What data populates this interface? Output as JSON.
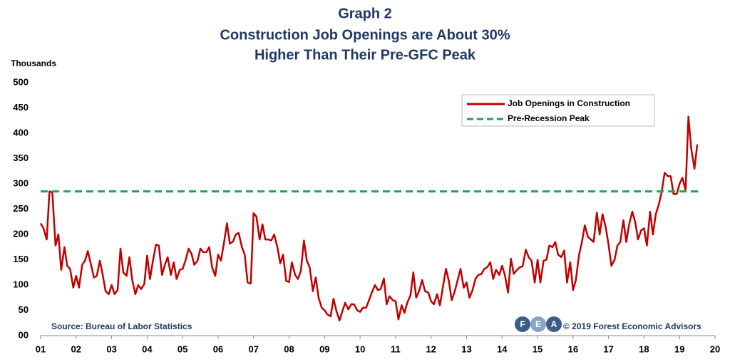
{
  "chart_data": {
    "type": "line",
    "title": [
      "Graph 2",
      "Construction Job Openings are About 30%",
      "Higher Than Their Pre-GFC Peak"
    ],
    "y_label": "Thousands",
    "source": "Source: Bureau of Labor Statistics",
    "logo": [
      "F",
      "E",
      "A"
    ],
    "copyright": "© 2019 Forest Economic Advisors",
    "xlim": [
      2001,
      2020
    ],
    "xticks": [
      {
        "value": 2001,
        "label": "01"
      },
      {
        "value": 2002,
        "label": "02"
      },
      {
        "value": 2003,
        "label": "03"
      },
      {
        "value": 2004,
        "label": "04"
      },
      {
        "value": 2005,
        "label": "05"
      },
      {
        "value": 2006,
        "label": "06"
      },
      {
        "value": 2007,
        "label": "07"
      },
      {
        "value": 2008,
        "label": "08"
      },
      {
        "value": 2009,
        "label": "09"
      },
      {
        "value": 2010,
        "label": "10"
      },
      {
        "value": 2011,
        "label": "11"
      },
      {
        "value": 2012,
        "label": "12"
      },
      {
        "value": 2013,
        "label": "13"
      },
      {
        "value": 2014,
        "label": "14"
      },
      {
        "value": 2015,
        "label": "15"
      },
      {
        "value": 2016,
        "label": "16"
      },
      {
        "value": 2017,
        "label": "17"
      },
      {
        "value": 2018,
        "label": "18"
      },
      {
        "value": 2019,
        "label": "19"
      },
      {
        "value": 2020,
        "label": "20"
      }
    ],
    "ylim": [
      0,
      500
    ],
    "yticks": [
      {
        "value": 0,
        "label": "00"
      },
      50,
      100,
      150,
      200,
      250,
      300,
      350,
      400,
      450,
      500
    ],
    "grid": false,
    "legend": "top-right",
    "x": [
      2001,
      2001.08,
      2001.17,
      2001.25,
      2001.33,
      2001.42,
      2001.5,
      2001.58,
      2001.67,
      2001.75,
      2001.83,
      2001.92,
      2002,
      2002.08,
      2002.17,
      2002.25,
      2002.33,
      2002.42,
      2002.5,
      2002.58,
      2002.67,
      2002.75,
      2002.83,
      2002.92,
      2003,
      2003.08,
      2003.17,
      2003.25,
      2003.33,
      2003.42,
      2003.5,
      2003.58,
      2003.67,
      2003.75,
      2003.83,
      2003.92,
      2004,
      2004.08,
      2004.17,
      2004.25,
      2004.33,
      2004.42,
      2004.5,
      2004.58,
      2004.67,
      2004.75,
      2004.83,
      2004.92,
      2005,
      2005.08,
      2005.17,
      2005.25,
      2005.33,
      2005.42,
      2005.5,
      2005.58,
      2005.67,
      2005.75,
      2005.83,
      2005.92,
      2006,
      2006.08,
      2006.17,
      2006.25,
      2006.33,
      2006.42,
      2006.5,
      2006.58,
      2006.67,
      2006.75,
      2006.83,
      2006.92,
      2007,
      2007.08,
      2007.17,
      2007.25,
      2007.33,
      2007.42,
      2007.5,
      2007.58,
      2007.67,
      2007.75,
      2007.83,
      2007.92,
      2008,
      2008.08,
      2008.17,
      2008.25,
      2008.33,
      2008.42,
      2008.5,
      2008.58,
      2008.67,
      2008.75,
      2008.83,
      2008.92,
      2009,
      2009.08,
      2009.17,
      2009.25,
      2009.33,
      2009.42,
      2009.5,
      2009.58,
      2009.67,
      2009.75,
      2009.83,
      2009.92,
      2010,
      2010.08,
      2010.17,
      2010.25,
      2010.33,
      2010.42,
      2010.5,
      2010.58,
      2010.67,
      2010.75,
      2010.83,
      2010.92,
      2011,
      2011.08,
      2011.17,
      2011.25,
      2011.33,
      2011.42,
      2011.5,
      2011.58,
      2011.67,
      2011.75,
      2011.83,
      2011.92,
      2012,
      2012.08,
      2012.17,
      2012.25,
      2012.33,
      2012.42,
      2012.5,
      2012.58,
      2012.67,
      2012.75,
      2012.83,
      2012.92,
      2013,
      2013.08,
      2013.17,
      2013.25,
      2013.33,
      2013.42,
      2013.5,
      2013.58,
      2013.67,
      2013.75,
      2013.83,
      2013.92,
      2014,
      2014.08,
      2014.17,
      2014.25,
      2014.33,
      2014.42,
      2014.5,
      2014.58,
      2014.67,
      2014.75,
      2014.83,
      2014.92,
      2015,
      2015.08,
      2015.17,
      2015.25,
      2015.33,
      2015.42,
      2015.5,
      2015.58,
      2015.67,
      2015.75,
      2015.83,
      2015.92,
      2016,
      2016.08,
      2016.17,
      2016.25,
      2016.33,
      2016.42,
      2016.5,
      2016.58,
      2016.67,
      2016.75,
      2016.83,
      2016.92,
      2017,
      2017.08,
      2017.17,
      2017.25,
      2017.33,
      2017.42,
      2017.5,
      2017.58,
      2017.67,
      2017.75,
      2017.83,
      2017.92,
      2018,
      2018.08,
      2018.17,
      2018.25,
      2018.33,
      2018.42,
      2018.5,
      2018.58,
      2018.67,
      2018.75,
      2018.83,
      2018.92,
      2019,
      2019.08,
      2019.17,
      2019.25,
      2019.33,
      2019.42,
      2019.5
    ],
    "series": [
      {
        "name": "Job Openings in Construction",
        "color": "#c00000",
        "values": [
          222,
          212,
          190,
          285,
          283,
          178,
          200,
          130,
          175,
          138,
          132,
          95,
          118,
          95,
          140,
          148,
          167,
          140,
          115,
          118,
          148,
          120,
          88,
          82,
          100,
          82,
          90,
          172,
          125,
          118,
          155,
          110,
          82,
          100,
          92,
          102,
          158,
          112,
          150,
          180,
          178,
          120,
          140,
          155,
          120,
          145,
          112,
          130,
          132,
          148,
          172,
          162,
          140,
          148,
          172,
          165,
          165,
          175,
          135,
          118,
          160,
          148,
          185,
          222,
          182,
          186,
          200,
          203,
          175,
          160,
          105,
          103,
          242,
          235,
          190,
          220,
          190,
          190,
          188,
          200,
          175,
          143,
          160,
          108,
          106,
          145,
          120,
          112,
          128,
          188,
          148,
          135,
          88,
          115,
          75,
          55,
          50,
          42,
          38,
          73,
          50,
          30,
          48,
          65,
          52,
          62,
          62,
          50,
          47,
          55,
          55,
          70,
          85,
          100,
          90,
          92,
          113,
          62,
          78,
          70,
          68,
          32,
          60,
          45,
          65,
          80,
          125,
          75,
          90,
          110,
          88,
          85,
          68,
          62,
          82,
          60,
          95,
          132,
          108,
          70,
          88,
          110,
          132,
          95,
          105,
          75,
          90,
          112,
          120,
          122,
          132,
          135,
          145,
          112,
          130,
          120,
          138,
          120,
          85,
          152,
          122,
          130,
          135,
          137,
          170,
          155,
          148,
          105,
          150,
          105,
          148,
          150,
          178,
          175,
          185,
          160,
          155,
          168,
          105,
          145,
          90,
          110,
          160,
          185,
          218,
          195,
          190,
          185,
          243,
          200,
          240,
          215,
          180,
          138,
          150,
          178,
          185,
          228,
          185,
          220,
          245,
          225,
          190,
          208,
          212,
          178,
          245,
          200,
          240,
          260,
          285,
          322,
          315,
          315,
          280,
          280,
          300,
          312,
          288,
          433,
          370,
          330,
          378
        ]
      },
      {
        "name": "Pre-Recession Peak",
        "color": "#22a455",
        "style": "dashed",
        "value": 285
      }
    ]
  }
}
